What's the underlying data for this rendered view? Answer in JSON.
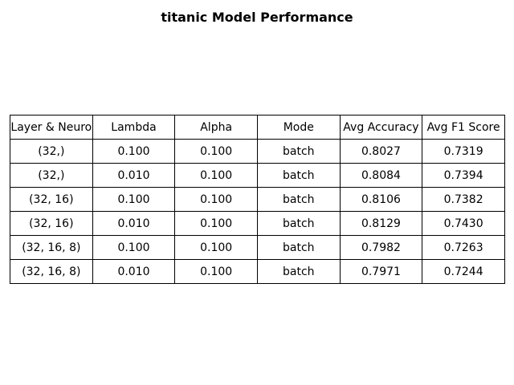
{
  "chart_data": {
    "type": "table",
    "title": "titanic Model Performance",
    "columns": [
      "Layer & Neuro",
      "Lambda",
      "Alpha",
      "Mode",
      "Avg Accuracy",
      "Avg F1 Score"
    ],
    "rows": [
      [
        "(32,)",
        "0.100",
        "0.100",
        "batch",
        "0.8027",
        "0.7319"
      ],
      [
        "(32,)",
        "0.010",
        "0.100",
        "batch",
        "0.8084",
        "0.7394"
      ],
      [
        "(32, 16)",
        "0.100",
        "0.100",
        "batch",
        "0.8106",
        "0.7382"
      ],
      [
        "(32, 16)",
        "0.010",
        "0.100",
        "batch",
        "0.8129",
        "0.7430"
      ],
      [
        "(32, 16, 8)",
        "0.100",
        "0.100",
        "batch",
        "0.7982",
        "0.7263"
      ],
      [
        "(32, 16, 8)",
        "0.010",
        "0.100",
        "batch",
        "0.7971",
        "0.7244"
      ]
    ]
  },
  "colors": {
    "background": "#ffffff",
    "text": "#000000",
    "border": "#000000"
  }
}
